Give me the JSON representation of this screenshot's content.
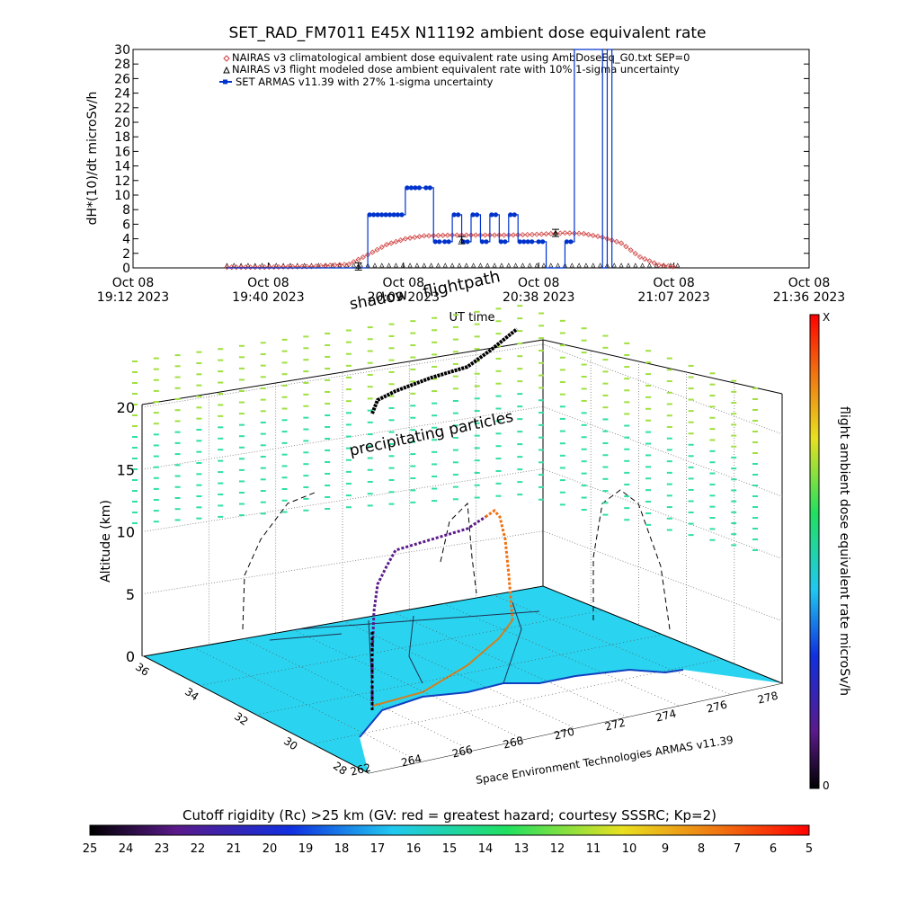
{
  "chart_data": [
    {
      "type": "line",
      "title": "SET_RAD_FM7011   E45X N11192 ambient dose equivalent rate",
      "ylabel": "dH*(10)/dt microSv/h",
      "xlabel": "UT time",
      "ylim": [
        0,
        30
      ],
      "yticks": [
        0,
        2,
        4,
        6,
        8,
        10,
        12,
        14,
        16,
        18,
        20,
        22,
        24,
        26,
        28,
        30
      ],
      "xlim": [
        "19:12",
        "21:36"
      ],
      "xticks": [
        {
          "line1": "Oct 08",
          "line2": "19:12 2023"
        },
        {
          "line1": "Oct 08",
          "line2": "19:40 2023"
        },
        {
          "line1": "Oct 08",
          "line2": "20:09 2023"
        },
        {
          "line1": "Oct 08",
          "line2": "20:38 2023"
        },
        {
          "line1": "Oct 08",
          "line2": "21:07 2023"
        },
        {
          "line1": "Oct 08",
          "line2": "21:36 2023"
        }
      ],
      "legend_position": "top",
      "legend": [
        "NAIRAS v3 climatological ambient dose equivalent rate using AmbDoseEq_G0.txt SEP=0",
        "NAIRAS v3 flight modeled dose ambient equivalent rate with 10% 1-sigma uncertainty",
        "SET ARMAS v11.39 with 27% 1-sigma uncertainty"
      ],
      "series": [
        {
          "name": "NAIRAS v3 climatological ambient dose equivalent rate using AmbDoseEq_G0.txt SEP=0",
          "color": "#d04040",
          "x": [
            "19:32",
            "19:40",
            "19:50",
            "19:58",
            "20:02",
            "20:06",
            "20:10",
            "20:14",
            "20:20",
            "20:26",
            "20:32",
            "20:38",
            "20:44",
            "20:48",
            "20:52",
            "20:56",
            "21:00",
            "21:04",
            "21:08"
          ],
          "values": [
            0.1,
            0.1,
            0.2,
            0.5,
            1.8,
            3.2,
            4.0,
            4.4,
            4.5,
            4.5,
            4.5,
            4.6,
            4.8,
            4.7,
            4.2,
            3.4,
            1.5,
            0.4,
            0.1
          ]
        },
        {
          "name": "NAIRAS v3 flight modeled dose ambient equivalent rate with 10% 1-sigma uncertainty",
          "color": "#000000",
          "x": [
            "20:00",
            "20:22",
            "20:42"
          ],
          "values": [
            0.2,
            3.8,
            4.8
          ]
        },
        {
          "name": "SET ARMAS v11.39 with 27% 1-sigma uncertainty",
          "color": "#0033cc",
          "x": [
            "19:32",
            "20:00",
            "20:02",
            "20:08",
            "20:10",
            "20:14",
            "20:16",
            "20:18",
            "20:20",
            "20:22",
            "20:24",
            "20:26",
            "20:28",
            "20:30",
            "20:32",
            "20:34",
            "20:38",
            "20:40",
            "20:44",
            "20:46",
            "20:52",
            "20:53",
            "20:54"
          ],
          "values": [
            0,
            0,
            7.3,
            7.3,
            11.0,
            11.0,
            3.6,
            3.6,
            7.3,
            3.6,
            7.3,
            3.6,
            7.3,
            3.6,
            7.3,
            3.6,
            3.6,
            0,
            3.6,
            30,
            0,
            30,
            0
          ]
        }
      ]
    },
    {
      "type": "scatter",
      "title": "",
      "zlabel": "Altitude (km)",
      "zticks": [
        0,
        5,
        10,
        15,
        20
      ],
      "lat_ticks": [
        36,
        34,
        32,
        30,
        28
      ],
      "lon_ticks": [
        262,
        264,
        266,
        268,
        270,
        272,
        274,
        276,
        278
      ],
      "annotations": [
        "shadow",
        "flightpath",
        "precipitating particles",
        "Space Environment Technologies ARMAS v11.39"
      ],
      "colorbar": {
        "label": "flight ambient dose equivalent rate microSv/h",
        "min_label": "0",
        "max_label": "X"
      },
      "rigidity_bar": {
        "title": "Cutoff rigidity (Rc) >25 km (GV: red = greatest hazard; courtesy SSSRC; Kp=2)",
        "ticks": [
          25,
          24,
          23,
          22,
          21,
          20,
          19,
          18,
          17,
          16,
          15,
          14,
          13,
          12,
          11,
          10,
          9,
          8,
          7,
          6,
          5
        ]
      }
    }
  ],
  "colors": {
    "armas": "#0033cc",
    "nairas_clim": "#d04040",
    "ground": "#2ad4f0",
    "particles_high": "#a0e040",
    "particles_low": "#30e0a0"
  }
}
